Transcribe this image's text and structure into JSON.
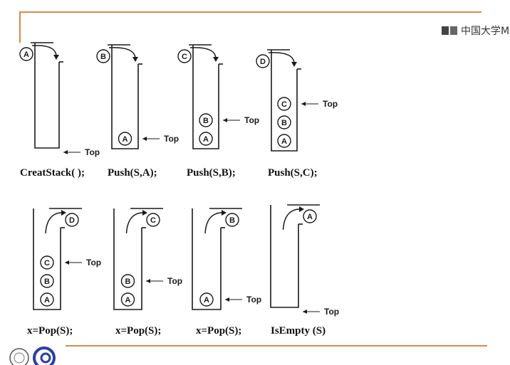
{
  "header": {
    "watermark_text": "中国大学M"
  },
  "colors": {
    "accent_line": "#d98a4a",
    "ink": "#1a1a1a",
    "logo_blue": "#2a3fa0"
  },
  "top_label": "Top",
  "stacks": [
    {
      "id": "create",
      "caption": "CreatStack( );",
      "items": [],
      "pending": "A",
      "mode": "push"
    },
    {
      "id": "push-a",
      "caption": "Push(S,A);",
      "items": [
        "A"
      ],
      "pending": "B",
      "mode": "push"
    },
    {
      "id": "push-b",
      "caption": "Push(S,B);",
      "items": [
        "A",
        "B"
      ],
      "pending": "C",
      "mode": "push"
    },
    {
      "id": "push-c",
      "caption": "Push(S,C);",
      "items": [
        "A",
        "B",
        "C"
      ],
      "pending": "D",
      "mode": "push"
    },
    {
      "id": "pop-d",
      "caption": "x=Pop(S);",
      "items": [
        "A",
        "B",
        "C"
      ],
      "pending": "D",
      "mode": "pop"
    },
    {
      "id": "pop-c",
      "caption": "x=Pop(S);",
      "items": [
        "A",
        "B"
      ],
      "pending": "C",
      "mode": "pop"
    },
    {
      "id": "pop-b",
      "caption": "x=Pop(S);",
      "items": [
        "A"
      ],
      "pending": "B",
      "mode": "pop"
    },
    {
      "id": "isempty",
      "caption": "IsEmpty (S)",
      "items": [],
      "pending": "A",
      "mode": "pop"
    }
  ]
}
